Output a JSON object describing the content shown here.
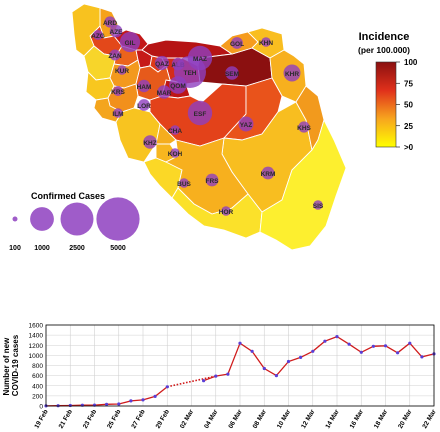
{
  "map": {
    "provinces": [
      {
        "code": "ARD",
        "cases": 200,
        "incidence": 40,
        "color": "#f6a21b"
      },
      {
        "code": "AZE",
        "cases": 320,
        "incidence": 60,
        "color": "#e3481a"
      },
      {
        "code": "AZG",
        "cases": 120,
        "incidence": 25,
        "color": "#f8c21f"
      },
      {
        "code": "ZAN",
        "cases": 180,
        "incidence": 50,
        "color": "#eb641c"
      },
      {
        "code": "GIL",
        "cases": 1500,
        "incidence": 90,
        "color": "#c31818"
      },
      {
        "code": "KUR",
        "cases": 90,
        "incidence": 15,
        "color": "#f7d52a"
      },
      {
        "code": "QAZ",
        "cases": 500,
        "incidence": 85,
        "color": "#c61a18"
      },
      {
        "code": "ALB",
        "cases": 300,
        "incidence": 60,
        "color": "#dd3a19"
      },
      {
        "code": "TEH",
        "cases": 5000,
        "incidence": 70,
        "color": "#d42c18"
      },
      {
        "code": "MAZ",
        "cases": 2500,
        "incidence": 90,
        "color": "#b61414"
      },
      {
        "code": "SEM",
        "cases": 400,
        "incidence": 100,
        "color": "#8b1010"
      },
      {
        "code": "GOL",
        "cases": 250,
        "incidence": 30,
        "color": "#f69c1d"
      },
      {
        "code": "KHN",
        "cases": 100,
        "incidence": 20,
        "color": "#f9be20"
      },
      {
        "code": "KHR",
        "cases": 900,
        "incidence": 25,
        "color": "#f7b01e"
      },
      {
        "code": "HAM",
        "cases": 300,
        "incidence": 35,
        "color": "#f3991d"
      },
      {
        "code": "MAR",
        "cases": 400,
        "incidence": 55,
        "color": "#e65a1b"
      },
      {
        "code": "QOM",
        "cases": 1000,
        "incidence": 90,
        "color": "#bd1616"
      },
      {
        "code": "KRS",
        "cases": 120,
        "incidence": 15,
        "color": "#f8c71f"
      },
      {
        "code": "LOR",
        "cases": 250,
        "incidence": 35,
        "color": "#f2901c"
      },
      {
        "code": "ILM",
        "cases": 100,
        "incidence": 30,
        "color": "#f4a51d"
      },
      {
        "code": "ESF",
        "cases": 2500,
        "incidence": 65,
        "color": "#e3421a"
      },
      {
        "code": "YAZ",
        "cases": 600,
        "incidence": 45,
        "color": "#e9531b"
      },
      {
        "code": "KHZ",
        "cases": 400,
        "incidence": 15,
        "color": "#f8c420"
      },
      {
        "code": "CHA",
        "cases": 100,
        "incidence": 25,
        "color": "#f5ad1e"
      },
      {
        "code": "KOH",
        "cases": 100,
        "incidence": 20,
        "color": "#f7b61f"
      },
      {
        "code": "KRM",
        "cases": 350,
        "incidence": 15,
        "color": "#f8be20"
      },
      {
        "code": "KHS",
        "cases": 200,
        "incidence": 30,
        "color": "#f29a1d"
      },
      {
        "code": "BUS",
        "cases": 100,
        "incidence": 10,
        "color": "#fbd826"
      },
      {
        "code": "FRS",
        "cases": 350,
        "incidence": 12,
        "color": "#f7b01e"
      },
      {
        "code": "HOR",
        "cases": 100,
        "incidence": 8,
        "color": "#fbe12a"
      },
      {
        "code": "SIS",
        "cases": 100,
        "incidence": 3,
        "color": "#fdef2f"
      }
    ],
    "legend": {
      "title": "Incidence",
      "subtitle": "(per 100.000)",
      "ticks": [
        "100",
        "75",
        "50",
        "25",
        ">0"
      ],
      "gradient": [
        "#8b1010",
        "#e0301b",
        "#f7a51e",
        "#ffff00"
      ]
    },
    "bubble_legend": {
      "title": "Confirmed Cases",
      "items": [
        {
          "label": "100",
          "value": 100
        },
        {
          "label": "1000",
          "value": 1000
        },
        {
          "label": "2500",
          "value": 2500
        },
        {
          "label": "5000",
          "value": 5000
        }
      ],
      "color": "#8e3fbf"
    }
  },
  "chart_data": {
    "type": "line",
    "ylabel": "Number of new COVID-19 cases",
    "ylim": [
      0,
      1600
    ],
    "yticks": [
      "0",
      "200",
      "400",
      "600",
      "800",
      "1000",
      "1200",
      "1400",
      "1600"
    ],
    "x": [
      "19 Feb",
      "20 Feb",
      "21 Feb",
      "22 Feb",
      "23 Feb",
      "24 Feb",
      "25 Feb",
      "26 Feb",
      "27 Feb",
      "28 Feb",
      "29 Feb",
      "01 Mar",
      "02 Mar",
      "03 Mar",
      "04 Mar",
      "05 Mar",
      "06 Mar",
      "07 Mar",
      "08 Mar",
      "09 Mar",
      "10 Mar",
      "11 Mar",
      "12 Mar",
      "13 Mar",
      "14 Mar",
      "15 Mar",
      "16 Mar",
      "17 Mar",
      "18 Mar",
      "19 Mar",
      "20 Mar",
      "21 Mar",
      "22 Mar"
    ],
    "xtick_labels": [
      "19 Feb",
      "21 Feb",
      "23 Feb",
      "25 Feb",
      "27 Feb",
      "29 Feb",
      "02 Mar",
      "04 Mar",
      "06 Mar",
      "08 Mar",
      "10 Mar",
      "12 Mar",
      "14 Mar",
      "16 Mar",
      "18 Mar",
      "20 Mar",
      "22 Mar"
    ],
    "series": [
      {
        "values": [
          2,
          5,
          10,
          15,
          18,
          33,
          40,
          100,
          120,
          190,
          380,
          null,
          null,
          500,
          590,
          630,
          1240,
          1080,
          740,
          600,
          880,
          960,
          1080,
          1280,
          1370,
          1220,
          1060,
          1180,
          1190,
          1050,
          1240,
          970,
          1030
        ],
        "color": "#d01c1c",
        "marker_color": "#5a3fd6",
        "dotted_gap": [
          10,
          14
        ]
      }
    ],
    "grid": true
  }
}
